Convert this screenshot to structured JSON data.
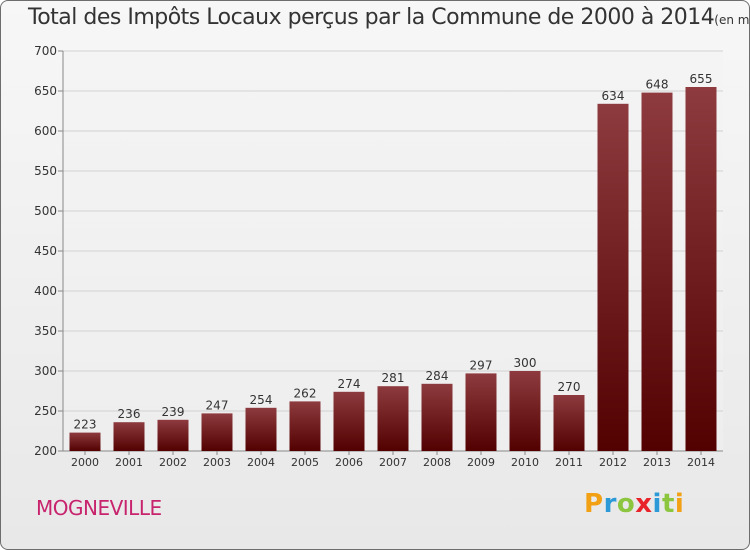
{
  "header": {
    "title": "Total des Impôts Locaux perçus par la Commune de 2000 à 2014",
    "unit": "(en milliers d'€)"
  },
  "footer": {
    "commune": "MOGNEVILLE",
    "brand": "Proxiti",
    "brand_letters": [
      {
        "char": "P",
        "color": "#f2a014"
      },
      {
        "char": "r",
        "color": "#2b9ad6"
      },
      {
        "char": "o",
        "color": "#8cc63f"
      },
      {
        "char": "x",
        "color": "#e8232a"
      },
      {
        "char": "i",
        "color": "#2b9ad6"
      },
      {
        "char": "t",
        "color": "#8cc63f"
      },
      {
        "char": "i",
        "color": "#f2a014"
      }
    ]
  },
  "colors": {
    "bar_top": "#8e3b3f",
    "bar_bottom": "#520000",
    "commune": "#c8246e"
  },
  "chart_data": {
    "type": "bar",
    "title": "Total des Impôts Locaux perçus par la Commune de 2000 à 2014",
    "subtitle": "(en milliers d'€)",
    "xlabel": "",
    "ylabel": "",
    "ylim": [
      200,
      700
    ],
    "yticks": [
      200,
      250,
      300,
      350,
      400,
      450,
      500,
      550,
      600,
      650,
      700
    ],
    "grid": true,
    "categories": [
      "2000",
      "2001",
      "2002",
      "2003",
      "2004",
      "2005",
      "2006",
      "2007",
      "2008",
      "2009",
      "2010",
      "2011",
      "2012",
      "2013",
      "2014"
    ],
    "values": [
      223,
      236,
      239,
      247,
      254,
      262,
      274,
      281,
      284,
      297,
      300,
      270,
      634,
      648,
      655
    ]
  }
}
